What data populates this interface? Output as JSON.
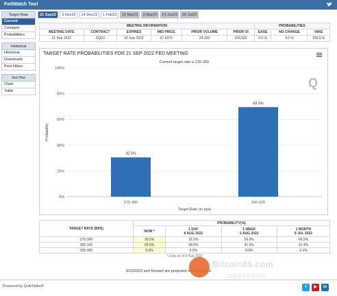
{
  "window": {
    "title": "FedWatch Tool"
  },
  "sidebar": {
    "sections": [
      {
        "header": "Target Rate",
        "items": [
          {
            "label": "Current",
            "active": true
          },
          {
            "label": "Compare"
          },
          {
            "label": "Probabilities"
          }
        ]
      },
      {
        "header": "Historical",
        "items": [
          {
            "label": "Historical"
          },
          {
            "label": "Downloads"
          },
          {
            "label": "Prior Hikes"
          }
        ]
      },
      {
        "header": "Dot Plot",
        "items": [
          {
            "label": "Chart"
          },
          {
            "label": "Table"
          }
        ]
      }
    ]
  },
  "tabs": [
    "21 Sep22",
    "2 Nov22",
    "14 Dec22",
    "1 Feb23",
    "15 Mar23",
    "3 May23",
    "14 Jun23",
    "26 Jul23"
  ],
  "meeting": {
    "group_info": "MEETING INFORMATION",
    "group_prob": "PROBABILITIES",
    "headers": [
      "MEETING DATE",
      "CONTRACT",
      "EXPIRES",
      "MID PRICE",
      "PRIOR VOLUME",
      "PRIOR OI",
      "EASE",
      "NO CHANGE",
      "HIKE"
    ],
    "values": [
      "21 Sep 2022",
      "ZQU2",
      "30 Sep 2022",
      "97.4375",
      "24,332",
      "159,532",
      "0.0 %",
      "0.0 %",
      "100.0 %"
    ]
  },
  "chart": {
    "title": "TARGET RATE PROBABILITIES FOR 21 SEP 2022 FED MEETING",
    "subtitle": "Current target rate is 225-250"
  },
  "chart_data": {
    "type": "bar",
    "categories": [
      "275-300",
      "300-325"
    ],
    "values": [
      30.5,
      69.5
    ],
    "value_labels": [
      "30.5%",
      "69.5%"
    ],
    "xlabel": "Target Rate (in bps)",
    "ylabel": "Probability",
    "ylim": [
      0,
      100
    ],
    "yticks": [
      "0%",
      "20%",
      "40%",
      "60%",
      "80%",
      "100%"
    ],
    "color": "#2e6fb5",
    "grid": true
  },
  "prob_table": {
    "col_target": "TARGET RATE (BPS)",
    "col_group": "PROBABILITY(%)",
    "periods": [
      {
        "label": "NOW *",
        "date": ""
      },
      {
        "label": "1 DAY",
        "date": "8 AUG 2022"
      },
      {
        "label": "1 WEEK",
        "date": "2 AUG 2022"
      },
      {
        "label": "1 MONTH",
        "date": "8 JUL 2022"
      }
    ],
    "rows": [
      {
        "rate": "275-300",
        "values": [
          "30.5%",
          "32.0%",
          "59.0%",
          "66.5%"
        ]
      },
      {
        "rate": "300-325",
        "values": [
          "69.5%",
          "68.0%",
          "41.0%",
          "31.4%"
        ]
      },
      {
        "rate": "325-350",
        "values": [
          "0.0%",
          "0.0%",
          "0.0%",
          "2.1%"
        ]
      }
    ],
    "note": "* Data as of 9 Aug 2022"
  },
  "footnote": "3/15/2023 and forward are projected meeting dates",
  "footer": {
    "powered": "Powered by QuikStrike®"
  },
  "social": [
    {
      "name": "twitter",
      "glyph": "t",
      "color": "#1da1f2"
    },
    {
      "name": "youtube",
      "glyph": "▶",
      "color": "#cc181e"
    },
    {
      "name": "linkedin",
      "glyph": "in",
      "color": "#0e76a8"
    }
  ],
  "watermark": {
    "text": "Bitcoin86.com",
    "text2": "加密货币信息网站"
  }
}
